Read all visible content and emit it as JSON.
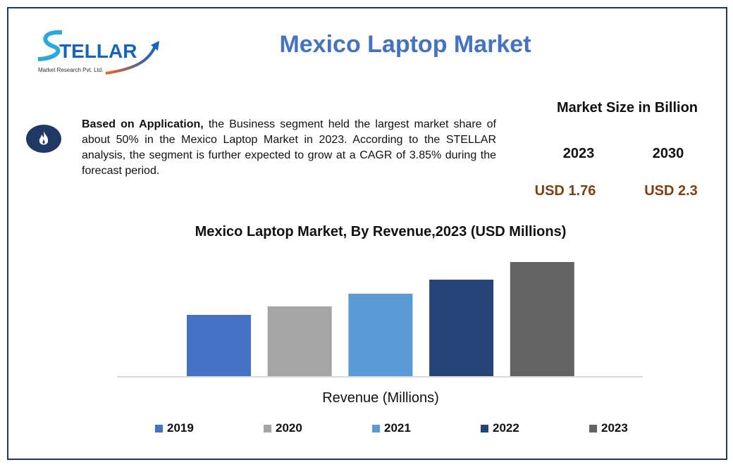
{
  "header": {
    "title": "Mexico Laptop Market",
    "logo_text": "STELLAR",
    "logo_subtext": "Market Research Pvt. Ltd."
  },
  "icon": "flame-icon",
  "summary": {
    "lead": "Based on Application,",
    "body": " the Business segment held the largest market share of about 50% in the Mexico Laptop Market in 2023. According to the STELLAR analysis, the segment is further expected to grow at a CAGR of 3.85% during the forecast period."
  },
  "market_size": {
    "heading": "Market Size in Billion",
    "years": [
      "2023",
      "2030"
    ],
    "values": [
      "USD 1.76",
      "USD 2.3"
    ]
  },
  "colors": {
    "accent": "#4472c4",
    "value": "#843c0c",
    "frame": "#1f3864"
  },
  "chart_data": {
    "type": "bar",
    "title": "Mexico Laptop Market, By Revenue,2023 (USD Millions)",
    "xlabel": "Revenue (Millions)",
    "ylabel": "",
    "categories": [
      "2019",
      "2020",
      "2021",
      "2022",
      "2023"
    ],
    "values": [
      945,
      1076,
      1271,
      1488,
      1760
    ],
    "colors": [
      "#4472c4",
      "#a5a5a5",
      "#5b9bd5",
      "#264478",
      "#636363"
    ],
    "ylim": [
      0,
      1760
    ],
    "grid": false,
    "legend": "bottom"
  }
}
